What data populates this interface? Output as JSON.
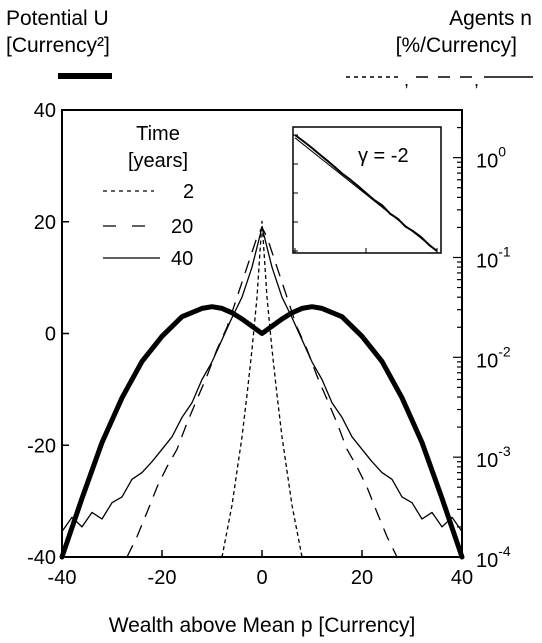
{
  "chart_data": {
    "type": "line",
    "xlabel": "Wealth above Mean p [Currency]",
    "left_axis": {
      "label_lines": [
        "Potential U",
        "[Currency²]"
      ],
      "ylim": [
        -40,
        40
      ],
      "ticks": [
        40,
        20,
        0,
        -20,
        -40
      ],
      "tick_labels": [
        "40",
        "20",
        "0",
        "-20",
        "-40"
      ]
    },
    "right_axis": {
      "label_lines": [
        "Agents n",
        "[%/Currency]"
      ],
      "scale": "log",
      "ylim": [
        0.0001,
        3
      ],
      "ticks": [
        1,
        0.1,
        0.01,
        0.001,
        0.0001
      ],
      "tick_bases": [
        "10",
        "10",
        "10",
        "10",
        "10"
      ],
      "tick_exps": [
        "0",
        "-1",
        "-2",
        "-3",
        "-4"
      ],
      "legend_sep": ","
    },
    "xlim": [
      -40,
      40
    ],
    "x_ticks": [
      -40,
      -20,
      0,
      20,
      40
    ],
    "x_tick_labels": [
      "-40",
      "-20",
      "0",
      "20",
      "40"
    ],
    "legend": {
      "title_lines": [
        "Time",
        "[years]"
      ],
      "entries": [
        {
          "label": "2",
          "style": "dotted"
        },
        {
          "label": "20",
          "style": "dashed"
        },
        {
          "label": "40",
          "style": "solid"
        }
      ]
    },
    "potential": {
      "axis": "left",
      "x": [
        -40,
        -36,
        -32,
        -28,
        -24,
        -20,
        -16,
        -12,
        -10,
        -8,
        -6,
        -4,
        -2,
        0,
        2,
        4,
        6,
        8,
        10,
        12,
        16,
        20,
        24,
        28,
        32,
        36,
        40
      ],
      "y": [
        -40,
        -29.5,
        -19.5,
        -11.5,
        -5,
        -0.5,
        3,
        4.5,
        4.8,
        4.5,
        3.7,
        2.6,
        1.3,
        0,
        1.3,
        2.6,
        3.7,
        4.5,
        4.8,
        4.5,
        3,
        -0.5,
        -5,
        -11.5,
        -19.5,
        -29.5,
        -40
      ]
    },
    "series": [
      {
        "name": "2",
        "axis": "right",
        "style": "dotted",
        "x": [
          -8,
          -6,
          -4,
          -3,
          -2,
          -1,
          0,
          1,
          2,
          3,
          4,
          6,
          8
        ],
        "y": [
          0.0001,
          0.00033,
          0.0016,
          0.0042,
          0.012,
          0.04,
          0.23,
          0.04,
          0.012,
          0.0042,
          0.0016,
          0.00033,
          0.0001
        ]
      },
      {
        "name": "20",
        "axis": "right",
        "style": "dashed",
        "x": [
          -27,
          -25,
          -23,
          -21,
          -19,
          -17,
          -15,
          -13,
          -11,
          -9,
          -7,
          -5,
          -3,
          -1,
          0,
          1,
          3,
          5,
          7,
          9,
          11,
          13,
          15,
          17,
          19,
          21,
          23,
          25,
          27
        ],
        "y": [
          0.0001,
          0.00016,
          0.00028,
          0.0005,
          0.0008,
          0.0012,
          0.0022,
          0.0038,
          0.0065,
          0.012,
          0.02,
          0.04,
          0.08,
          0.16,
          0.2,
          0.16,
          0.08,
          0.04,
          0.02,
          0.012,
          0.0065,
          0.0038,
          0.0022,
          0.0012,
          0.0008,
          0.0005,
          0.00028,
          0.00016,
          0.0001
        ]
      },
      {
        "name": "40",
        "axis": "right",
        "style": "solid",
        "x": [
          -40,
          -38,
          -36,
          -34,
          -32,
          -30,
          -28,
          -26,
          -24,
          -22,
          -20,
          -18,
          -16,
          -14,
          -12,
          -10,
          -8,
          -6,
          -4,
          -2,
          0,
          2,
          4,
          6,
          8,
          10,
          12,
          14,
          16,
          18,
          20,
          22,
          24,
          26,
          28,
          30,
          32,
          34,
          36,
          38,
          40
        ],
        "y": [
          0.00018,
          0.00025,
          0.0002,
          0.00028,
          0.00024,
          0.00035,
          0.0004,
          0.0006,
          0.0007,
          0.0009,
          0.0012,
          0.0016,
          0.0025,
          0.0035,
          0.006,
          0.009,
          0.015,
          0.025,
          0.04,
          0.08,
          0.2,
          0.08,
          0.04,
          0.025,
          0.015,
          0.009,
          0.006,
          0.0035,
          0.0025,
          0.0016,
          0.0012,
          0.0009,
          0.0007,
          0.0006,
          0.0004,
          0.00035,
          0.00024,
          0.00028,
          0.0002,
          0.00025,
          0.00018
        ]
      }
    ],
    "inset": {
      "annotation": "γ = -2",
      "scale": "log-log",
      "fit_slope": -2,
      "data_x": [
        1,
        1.3,
        1.7,
        2.2,
        2.8,
        3.6,
        4.6,
        6,
        7.8,
        10,
        13,
        17,
        22,
        28,
        36,
        46,
        60,
        78,
        100
      ],
      "data_y": [
        1,
        0.62,
        0.37,
        0.22,
        0.135,
        0.08,
        0.047,
        0.029,
        0.017,
        0.01,
        0.0058,
        0.0037,
        0.0019,
        0.0013,
        0.0007,
        0.00048,
        0.0003,
        0.00016,
        0.0001
      ],
      "fit_x": [
        1,
        100
      ],
      "fit_y": [
        0.8,
        0.0001
      ]
    }
  }
}
